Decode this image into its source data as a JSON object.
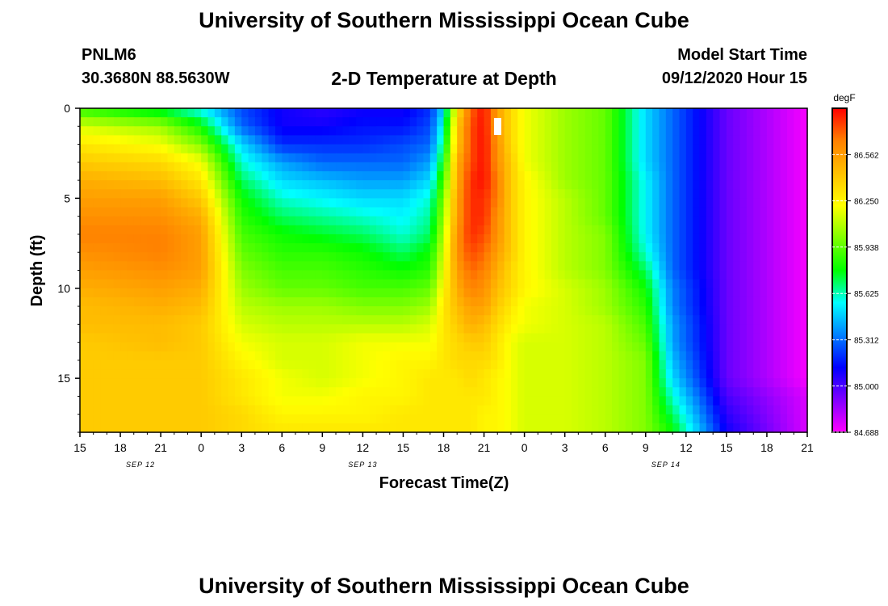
{
  "header": {
    "title": "University of Southern Mississippi Ocean Cube",
    "station": "PNLM6",
    "coords": "30.3680N 88.5630W",
    "plot_name": "2-D Temperature at Depth",
    "model_start_label": "Model Start Time",
    "model_start_value": "09/12/2020 Hour 15"
  },
  "footer": {
    "title": "University of Southern Mississippi Ocean Cube"
  },
  "chart_data": {
    "type": "heatmap",
    "title": "2-D Temperature at Depth",
    "xlabel": "Forecast Time(Z)",
    "ylabel": "Depth (ft)",
    "x_ticks": [
      "15",
      "18",
      "21",
      "0",
      "3",
      "6",
      "9",
      "12",
      "15",
      "18",
      "21",
      "0",
      "3",
      "6",
      "9",
      "12",
      "15",
      "18",
      "21"
    ],
    "x_hours": [
      0,
      3,
      6,
      9,
      12,
      15,
      18,
      21,
      24,
      27,
      30,
      33,
      36,
      39,
      42,
      45,
      48,
      51,
      54
    ],
    "xlim": [
      0,
      54
    ],
    "date_labels": [
      {
        "text": "SEP 12",
        "hour": 4.5
      },
      {
        "text": "SEP 13",
        "hour": 21
      },
      {
        "text": "SEP 14",
        "hour": 43.5
      }
    ],
    "y_ticks": [
      0,
      5,
      10,
      15
    ],
    "ylim": [
      0,
      18
    ],
    "colorbar": {
      "unit": "degF",
      "ticks": [
        "86.562",
        "86.250",
        "85.938",
        "85.625",
        "85.312",
        "85.000",
        "84.688"
      ],
      "min": 84.688,
      "max": 86.875,
      "colors": [
        "#ff00ff",
        "#8000ff",
        "#0000ff",
        "#0080ff",
        "#00ffff",
        "#00ff00",
        "#80ff00",
        "#ffff00",
        "#ffc000",
        "#ff8000",
        "#ff0000"
      ]
    },
    "grid": {
      "hours": [
        0,
        6,
        9,
        12,
        15,
        18,
        21,
        24,
        26,
        27,
        28,
        29,
        30,
        31,
        32,
        33,
        36,
        39,
        42,
        44,
        48,
        54
      ],
      "depths": [
        0,
        1,
        2,
        3,
        4,
        5,
        6,
        7,
        8,
        9,
        10,
        11,
        12,
        13,
        14,
        15,
        16,
        17,
        18
      ],
      "temperature_degF": [
        [
          85.85,
          85.7,
          85.55,
          85.25,
          85.1,
          85.05,
          85.1,
          85.1,
          85.2,
          85.5,
          86.3,
          86.7,
          86.85,
          86.55,
          86.35,
          86.2,
          86.05,
          85.95,
          85.5,
          85.3,
          84.95,
          84.7
        ],
        [
          86.15,
          86.05,
          85.8,
          85.3,
          85.1,
          85.1,
          85.15,
          85.15,
          85.25,
          85.6,
          86.4,
          86.75,
          86.85,
          86.55,
          86.35,
          86.2,
          86.05,
          85.95,
          85.5,
          85.3,
          84.95,
          84.7
        ],
        [
          86.3,
          86.2,
          86.0,
          85.5,
          85.2,
          85.2,
          85.2,
          85.25,
          85.3,
          85.7,
          86.4,
          86.75,
          86.85,
          86.6,
          86.35,
          86.2,
          86.05,
          85.95,
          85.5,
          85.3,
          84.95,
          84.7
        ],
        [
          86.4,
          86.35,
          86.2,
          85.6,
          85.4,
          85.3,
          85.3,
          85.3,
          85.4,
          85.8,
          86.5,
          86.75,
          86.85,
          86.6,
          86.4,
          86.2,
          86.05,
          85.95,
          85.5,
          85.3,
          84.95,
          84.7
        ],
        [
          86.5,
          86.45,
          86.3,
          85.7,
          85.5,
          85.45,
          85.4,
          85.4,
          85.5,
          85.9,
          86.5,
          86.8,
          86.85,
          86.65,
          86.4,
          86.25,
          86.05,
          85.95,
          85.55,
          85.3,
          84.95,
          84.7
        ],
        [
          86.55,
          86.55,
          86.4,
          85.8,
          85.6,
          85.55,
          85.5,
          85.5,
          85.6,
          86.0,
          86.55,
          86.8,
          86.8,
          86.65,
          86.4,
          86.25,
          86.1,
          85.95,
          85.55,
          85.3,
          84.95,
          84.7
        ],
        [
          86.6,
          86.6,
          86.5,
          85.85,
          85.7,
          85.65,
          85.6,
          85.55,
          85.65,
          86.05,
          86.55,
          86.8,
          86.8,
          86.6,
          86.4,
          86.25,
          86.1,
          85.95,
          85.55,
          85.3,
          84.95,
          84.7
        ],
        [
          86.65,
          86.65,
          86.55,
          85.9,
          85.8,
          85.75,
          85.7,
          85.6,
          85.7,
          86.1,
          86.6,
          86.8,
          86.75,
          86.6,
          86.4,
          86.25,
          86.1,
          86.0,
          85.55,
          85.3,
          84.95,
          84.7
        ],
        [
          86.6,
          86.65,
          86.55,
          85.95,
          85.85,
          85.85,
          85.8,
          85.7,
          85.8,
          86.15,
          86.6,
          86.75,
          86.7,
          86.55,
          86.4,
          86.25,
          86.1,
          86.0,
          85.6,
          85.3,
          84.95,
          84.7
        ],
        [
          86.55,
          86.6,
          86.55,
          86.0,
          85.9,
          85.9,
          85.85,
          85.8,
          85.85,
          86.2,
          86.55,
          86.7,
          86.65,
          86.5,
          86.35,
          86.25,
          86.1,
          86.0,
          85.7,
          85.3,
          84.95,
          84.7
        ],
        [
          86.5,
          86.55,
          86.5,
          86.05,
          85.95,
          85.95,
          85.9,
          85.9,
          85.95,
          86.25,
          86.5,
          86.65,
          86.6,
          86.45,
          86.35,
          86.25,
          86.15,
          86.05,
          85.8,
          85.35,
          84.95,
          84.7
        ],
        [
          86.45,
          86.5,
          86.45,
          86.1,
          86.05,
          86.05,
          86.0,
          86.0,
          86.05,
          86.3,
          86.45,
          86.55,
          86.55,
          86.4,
          86.3,
          86.2,
          86.15,
          86.05,
          85.85,
          85.35,
          84.95,
          84.7
        ],
        [
          86.45,
          86.45,
          86.4,
          86.15,
          86.1,
          86.1,
          86.1,
          86.1,
          86.15,
          86.3,
          86.4,
          86.5,
          86.45,
          86.35,
          86.25,
          86.2,
          86.15,
          86.1,
          85.9,
          85.4,
          84.95,
          84.7
        ],
        [
          86.4,
          86.45,
          86.4,
          86.2,
          86.15,
          86.15,
          86.2,
          86.2,
          86.2,
          86.3,
          86.35,
          86.4,
          86.4,
          86.3,
          86.2,
          86.15,
          86.15,
          86.1,
          85.95,
          85.4,
          84.95,
          84.7
        ],
        [
          86.4,
          86.4,
          86.4,
          86.25,
          86.15,
          86.15,
          86.2,
          86.25,
          86.25,
          86.3,
          86.35,
          86.35,
          86.35,
          86.3,
          86.2,
          86.15,
          86.15,
          86.1,
          86.0,
          85.45,
          84.95,
          84.7
        ],
        [
          86.4,
          86.4,
          86.4,
          86.3,
          86.2,
          86.15,
          86.2,
          86.25,
          86.3,
          86.3,
          86.3,
          86.35,
          86.3,
          86.25,
          86.2,
          86.15,
          86.15,
          86.1,
          86.0,
          85.5,
          84.95,
          84.7
        ],
        [
          86.4,
          86.4,
          86.4,
          86.3,
          86.2,
          86.2,
          86.25,
          86.25,
          86.3,
          86.3,
          86.3,
          86.3,
          86.3,
          86.25,
          86.2,
          86.15,
          86.15,
          86.1,
          86.0,
          85.6,
          85.0,
          84.75
        ],
        [
          86.4,
          86.4,
          86.4,
          86.35,
          86.25,
          86.25,
          86.25,
          86.3,
          86.3,
          86.3,
          86.3,
          86.3,
          86.25,
          86.25,
          86.2,
          86.15,
          86.15,
          86.1,
          86.0,
          85.7,
          85.05,
          84.75
        ],
        [
          86.4,
          86.4,
          86.4,
          86.35,
          86.3,
          86.3,
          86.3,
          86.3,
          86.3,
          86.3,
          86.3,
          86.3,
          86.25,
          86.25,
          86.2,
          86.15,
          86.15,
          86.1,
          86.0,
          85.8,
          85.1,
          84.75
        ]
      ]
    }
  }
}
